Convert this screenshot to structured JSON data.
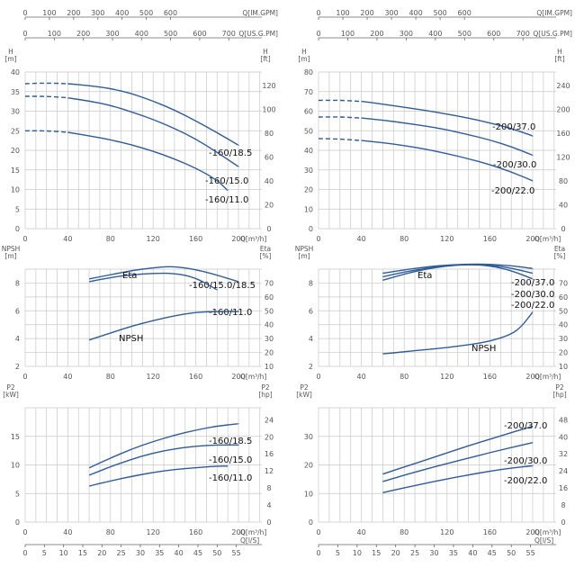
{
  "chart_data": [
    {
      "id": "L-H",
      "type": "line",
      "y_left_unit": "H\n[m]",
      "y_right_unit": "H\n[ft]",
      "x_unit": "Q[m³/h]",
      "top_axes": [
        {
          "label": "Q[IM.GPM]",
          "ticks": [
            "0",
            "100",
            "200",
            "300",
            "400",
            "500",
            "600"
          ]
        },
        {
          "label": "Q[US.G.PM]",
          "ticks": [
            "0",
            "100",
            "200",
            "300",
            "400",
            "500",
            "600",
            "700"
          ]
        }
      ],
      "xlim": [
        0,
        200
      ],
      "x_ticks": [
        "0",
        "40",
        "80",
        "120",
        "160",
        "200"
      ],
      "ylim": [
        0,
        40
      ],
      "y_ticks": [
        "0",
        "5",
        "10",
        "15",
        "20",
        "25",
        "30",
        "35",
        "40"
      ],
      "y2_ticks": [
        "0",
        "20",
        "40",
        "60",
        "80",
        "100",
        "120"
      ],
      "series": [
        {
          "name": "-160/18.5",
          "dash_until": 40,
          "x": [
            0,
            20,
            40,
            60,
            80,
            100,
            120,
            140,
            160,
            180,
            200
          ],
          "y": [
            37,
            37.2,
            37,
            36.5,
            35.8,
            34.5,
            32.6,
            30.3,
            27.5,
            24.5,
            21.3
          ]
        },
        {
          "name": "-160/15.0",
          "dash_until": 40,
          "x": [
            0,
            20,
            40,
            60,
            80,
            100,
            120,
            140,
            160,
            180,
            200
          ],
          "y": [
            33.8,
            33.8,
            33.4,
            32.6,
            31.5,
            29.8,
            27.9,
            25.6,
            22.9,
            19.5,
            15.8
          ]
        },
        {
          "name": "-160/11.0",
          "dash_until": 40,
          "x": [
            0,
            20,
            40,
            60,
            80,
            100,
            120,
            140,
            160,
            180,
            190
          ],
          "y": [
            25,
            25,
            24.6,
            23.7,
            22.7,
            21.4,
            19.8,
            17.8,
            15.5,
            12.4,
            9.7
          ]
        }
      ]
    },
    {
      "id": "R-H",
      "type": "line",
      "y_left_unit": "H\n[m]",
      "y_right_unit": "H\n[ft]",
      "x_unit": "Q[m³/h]",
      "top_axes": [
        {
          "label": "Q[IM.GPM]",
          "ticks": [
            "0",
            "100",
            "200",
            "300",
            "400",
            "500",
            "600"
          ]
        },
        {
          "label": "Q[US.G.PM]",
          "ticks": [
            "0",
            "100",
            "200",
            "300",
            "400",
            "500",
            "600",
            "700"
          ]
        }
      ],
      "xlim": [
        0,
        200
      ],
      "x_ticks": [
        "0",
        "40",
        "80",
        "120",
        "160",
        "200"
      ],
      "ylim": [
        0,
        80
      ],
      "y_ticks": [
        "0",
        "10",
        "20",
        "30",
        "40",
        "50",
        "60",
        "70",
        "80"
      ],
      "y2_ticks": [
        "0",
        "40",
        "80",
        "120",
        "160",
        "200",
        "240"
      ],
      "series": [
        {
          "name": "-200/37.0",
          "dash_until": 40,
          "x": [
            0,
            20,
            40,
            60,
            80,
            100,
            120,
            140,
            160,
            180,
            200
          ],
          "y": [
            65.5,
            65.6,
            65,
            63.6,
            62,
            60.4,
            58.5,
            56.5,
            54,
            51.2,
            47.4
          ]
        },
        {
          "name": "-200/30.0",
          "dash_until": 40,
          "x": [
            0,
            20,
            40,
            60,
            80,
            100,
            120,
            140,
            160,
            180,
            200
          ],
          "y": [
            57,
            57.1,
            56.5,
            55.4,
            54,
            52.4,
            50.5,
            48,
            45.3,
            41.9,
            37.5
          ]
        },
        {
          "name": "-200/22.0",
          "dash_until": 40,
          "x": [
            0,
            20,
            40,
            60,
            80,
            100,
            120,
            140,
            160,
            180,
            200
          ],
          "y": [
            46,
            45.8,
            45,
            43.9,
            42.4,
            40.6,
            38.3,
            35.7,
            32.7,
            29,
            24.4
          ]
        }
      ]
    },
    {
      "id": "L-NPSH",
      "type": "line",
      "y_left_unit": "NPSH\n[m]",
      "y_right_unit": "Eta\n[%]",
      "x_unit": "Q[m³/h]",
      "xlim": [
        0,
        200
      ],
      "x_ticks": [
        "0",
        "40",
        "80",
        "120",
        "160",
        "200"
      ],
      "ylim": [
        2,
        9
      ],
      "y_ticks": [
        "2",
        "4",
        "6",
        "8"
      ],
      "y2lim": [
        10,
        80
      ],
      "y2_ticks": [
        "10",
        "20",
        "30",
        "40",
        "50",
        "60",
        "70"
      ],
      "labels": [
        "Eta",
        "NPSH"
      ],
      "series": [
        {
          "name": "-160/15.0/18.5",
          "axis": "eta",
          "x": [
            60,
            80,
            100,
            120,
            135,
            150,
            170,
            200
          ],
          "y": [
            73,
            76,
            79,
            81,
            82,
            81,
            78,
            71
          ]
        },
        {
          "name": "-160/11.0",
          "axis": "eta",
          "x": [
            60,
            80,
            100,
            120,
            140,
            160,
            180
          ],
          "y": [
            71,
            74,
            76,
            77,
            77,
            74,
            65
          ]
        },
        {
          "name": "NPSH",
          "axis": "npsh",
          "x": [
            60,
            80,
            100,
            120,
            140,
            160,
            180,
            200
          ],
          "y": [
            3.9,
            4.4,
            4.9,
            5.3,
            5.65,
            5.9,
            5.95,
            5.95
          ]
        }
      ]
    },
    {
      "id": "R-NPSH",
      "type": "line",
      "y_left_unit": "NPSH\n[m]",
      "y_right_unit": "Eta\n[%]",
      "x_unit": "Q[m³/h]",
      "xlim": [
        0,
        200
      ],
      "x_ticks": [
        "0",
        "40",
        "80",
        "120",
        "160",
        "200"
      ],
      "ylim": [
        2,
        9
      ],
      "y_ticks": [
        "2",
        "4",
        "6",
        "8"
      ],
      "y2lim": [
        10,
        80
      ],
      "y2_ticks": [
        "10",
        "20",
        "30",
        "40",
        "50",
        "60",
        "70"
      ],
      "labels": [
        "Eta",
        "NPSH"
      ],
      "series": [
        {
          "name": "-200/37.0",
          "axis": "eta",
          "x": [
            60,
            80,
            100,
            120,
            140,
            160,
            180,
            200
          ],
          "y": [
            77,
            79.5,
            81.5,
            83,
            83.6,
            83.5,
            82.5,
            80.5
          ]
        },
        {
          "name": "-200/30.0",
          "axis": "eta",
          "x": [
            60,
            80,
            100,
            120,
            140,
            160,
            180,
            200
          ],
          "y": [
            74.5,
            78,
            80.5,
            82.5,
            83.5,
            83,
            80.8,
            77
          ]
        },
        {
          "name": "-200/22.0",
          "axis": "eta",
          "x": [
            60,
            80,
            100,
            120,
            140,
            160,
            180,
            200
          ],
          "y": [
            72,
            76.5,
            80,
            82.3,
            83.4,
            82.5,
            79,
            73
          ]
        },
        {
          "name": "NPSH",
          "axis": "npsh",
          "x": [
            60,
            80,
            100,
            120,
            140,
            160,
            180,
            190,
            200
          ],
          "y": [
            2.9,
            3.05,
            3.2,
            3.35,
            3.55,
            3.8,
            4.3,
            4.9,
            5.9
          ]
        }
      ]
    },
    {
      "id": "L-P2",
      "type": "line",
      "y_left_unit": "P2\n[kW]",
      "y_right_unit": "P2\n[hp]",
      "x_unit": "Q[m³/h]",
      "bottom_unit": "Q[l/S]",
      "xlim": [
        0,
        200
      ],
      "x_ticks": [
        "0",
        "40",
        "80",
        "120",
        "160",
        "200"
      ],
      "ls_ticks": [
        "0",
        "5",
        "10",
        "15",
        "20",
        "25",
        "30",
        "35",
        "40",
        "45",
        "50",
        "55"
      ],
      "ylim": [
        0,
        20
      ],
      "y_ticks": [
        "0",
        "5",
        "10",
        "15"
      ],
      "y2_ticks": [
        "0",
        "4",
        "8",
        "12",
        "16",
        "20",
        "24"
      ],
      "series": [
        {
          "name": "-160/18.5",
          "x": [
            60,
            80,
            100,
            120,
            140,
            160,
            180,
            200
          ],
          "y": [
            9.5,
            11.2,
            12.8,
            14.1,
            15.2,
            16.1,
            16.8,
            17.2
          ]
        },
        {
          "name": "-160/15.0",
          "x": [
            60,
            80,
            100,
            120,
            140,
            160,
            180,
            200
          ],
          "y": [
            8.2,
            9.7,
            11,
            12.1,
            12.8,
            13.3,
            13.5,
            13.5
          ]
        },
        {
          "name": "-160/11.0",
          "x": [
            60,
            80,
            100,
            120,
            140,
            160,
            180,
            190
          ],
          "y": [
            6.3,
            7.2,
            8,
            8.7,
            9.2,
            9.5,
            9.8,
            9.8
          ]
        }
      ]
    },
    {
      "id": "R-P2",
      "type": "line",
      "y_left_unit": "P2\n[kW]",
      "y_right_unit": "P2\n[hp]",
      "x_unit": "Q[m³/h]",
      "bottom_unit": "Q[l/S]",
      "xlim": [
        0,
        200
      ],
      "x_ticks": [
        "0",
        "40",
        "80",
        "120",
        "160",
        "200"
      ],
      "ls_ticks": [
        "0",
        "5",
        "10",
        "15",
        "20",
        "25",
        "30",
        "35",
        "40",
        "45",
        "50",
        "55"
      ],
      "ylim": [
        0,
        40
      ],
      "y_ticks": [
        "0",
        "10",
        "20",
        "30"
      ],
      "y2_ticks": [
        "0",
        "8",
        "16",
        "24",
        "32",
        "40",
        "48"
      ],
      "series": [
        {
          "name": "-200/37.0",
          "x": [
            60,
            80,
            100,
            120,
            140,
            160,
            180,
            200
          ],
          "y": [
            16.8,
            19.3,
            21.7,
            24.2,
            26.7,
            29,
            31.3,
            33.5
          ]
        },
        {
          "name": "-200/30.0",
          "x": [
            60,
            80,
            100,
            120,
            140,
            160,
            180,
            200
          ],
          "y": [
            14.2,
            16.4,
            18.5,
            20.5,
            22.4,
            24.3,
            26.1,
            27.8
          ]
        },
        {
          "name": "-200/22.0",
          "x": [
            60,
            80,
            100,
            120,
            140,
            160,
            180,
            200
          ],
          "y": [
            10.3,
            12,
            13.6,
            15.1,
            16.5,
            17.8,
            18.9,
            19.7
          ]
        }
      ]
    }
  ],
  "colors": {
    "curve": "#2e5c99",
    "grid": "#c8c8c8",
    "axis": "#666666",
    "text": "#555555"
  }
}
